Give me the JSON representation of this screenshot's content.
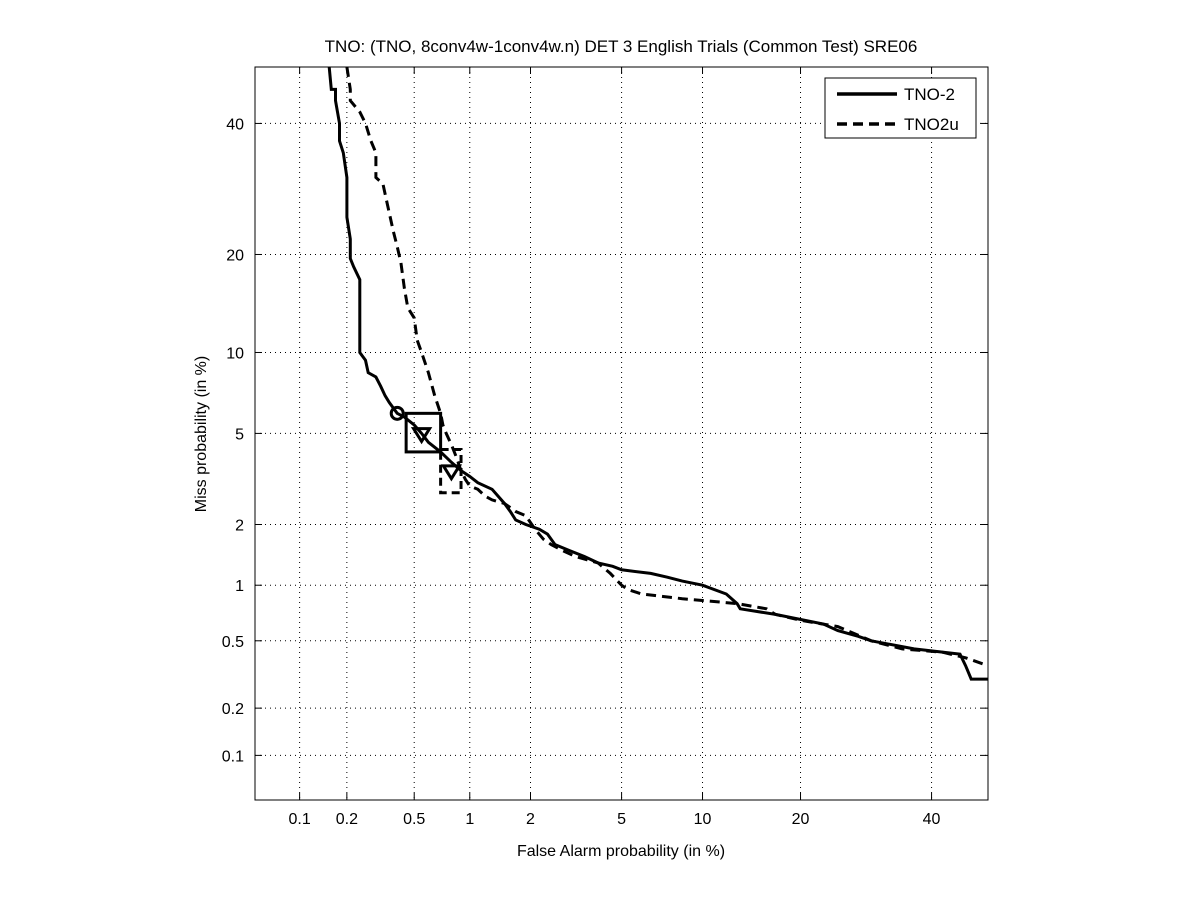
{
  "chart_data": {
    "type": "line",
    "title": "TNO: (TNO, 8conv4w-1conv4w.n) DET 3 English Trials (Common Test) SRE06",
    "xlabel": "False Alarm probability (in %)",
    "ylabel": "Miss probability (in %)",
    "scale": "probit (normal deviate)",
    "xlim": [
      0.05,
      50
    ],
    "ylim": [
      0.05,
      50
    ],
    "grid": true,
    "legend_position": "top-right",
    "x_ticks": [
      0.1,
      0.2,
      0.5,
      1,
      2,
      5,
      10,
      20,
      40
    ],
    "x_tick_labels": [
      "0.1",
      "0.2",
      "0.5",
      "1",
      "2",
      "5",
      "10",
      "20",
      "40"
    ],
    "y_ticks": [
      0.1,
      0.2,
      0.5,
      1,
      2,
      5,
      10,
      20,
      40
    ],
    "y_tick_labels": [
      "0.1",
      "0.2",
      "0.5",
      "1",
      "2",
      "5",
      "10",
      "20",
      "40"
    ],
    "colors": {
      "line": "#000000",
      "grid": "#000000",
      "background": "#ffffff"
    },
    "series": [
      {
        "name": "TNO-2",
        "style": "solid",
        "points": [
          [
            0.155,
            50
          ],
          [
            0.16,
            46
          ],
          [
            0.17,
            46
          ],
          [
            0.17,
            44
          ],
          [
            0.175,
            42
          ],
          [
            0.18,
            40
          ],
          [
            0.18,
            37
          ],
          [
            0.19,
            35
          ],
          [
            0.2,
            31
          ],
          [
            0.2,
            25
          ],
          [
            0.21,
            22
          ],
          [
            0.21,
            19.5
          ],
          [
            0.22,
            18.5
          ],
          [
            0.24,
            17
          ],
          [
            0.24,
            10
          ],
          [
            0.26,
            9.4
          ],
          [
            0.27,
            8.5
          ],
          [
            0.3,
            8.2
          ],
          [
            0.32,
            7.6
          ],
          [
            0.34,
            7.0
          ],
          [
            0.36,
            6.6
          ],
          [
            0.4,
            6.0
          ],
          [
            0.44,
            5.8
          ],
          [
            0.5,
            5.4
          ],
          [
            0.55,
            5.0
          ],
          [
            0.6,
            4.6
          ],
          [
            0.7,
            4.2
          ],
          [
            0.8,
            3.8
          ],
          [
            0.9,
            3.5
          ],
          [
            1.0,
            3.3
          ],
          [
            1.1,
            3.1
          ],
          [
            1.3,
            2.9
          ],
          [
            1.5,
            2.5
          ],
          [
            1.6,
            2.3
          ],
          [
            1.7,
            2.1
          ],
          [
            1.9,
            2.0
          ],
          [
            2.2,
            1.9
          ],
          [
            2.4,
            1.8
          ],
          [
            2.6,
            1.6
          ],
          [
            3.0,
            1.5
          ],
          [
            3.5,
            1.4
          ],
          [
            4.0,
            1.3
          ],
          [
            4.6,
            1.25
          ],
          [
            5.0,
            1.2
          ],
          [
            6.5,
            1.15
          ],
          [
            7.5,
            1.1
          ],
          [
            8.5,
            1.05
          ],
          [
            10.0,
            1.0
          ],
          [
            12.0,
            0.9
          ],
          [
            13.0,
            0.8
          ],
          [
            13.3,
            0.75
          ],
          [
            17.0,
            0.7
          ],
          [
            23.0,
            0.62
          ],
          [
            25.0,
            0.57
          ],
          [
            28.0,
            0.53
          ],
          [
            30.0,
            0.5
          ],
          [
            37.0,
            0.45
          ],
          [
            45.0,
            0.42
          ],
          [
            46.0,
            0.36
          ],
          [
            47.0,
            0.3
          ],
          [
            50.0,
            0.3
          ]
        ]
      },
      {
        "name": "TNO2u",
        "style": "dashed",
        "points": [
          [
            0.2,
            50
          ],
          [
            0.21,
            46
          ],
          [
            0.21,
            44
          ],
          [
            0.24,
            42
          ],
          [
            0.26,
            40
          ],
          [
            0.28,
            37
          ],
          [
            0.3,
            35
          ],
          [
            0.3,
            31
          ],
          [
            0.33,
            30
          ],
          [
            0.35,
            27
          ],
          [
            0.38,
            23
          ],
          [
            0.4,
            21
          ],
          [
            0.42,
            19
          ],
          [
            0.44,
            16
          ],
          [
            0.46,
            14
          ],
          [
            0.5,
            13
          ],
          [
            0.52,
            11
          ],
          [
            0.55,
            10
          ],
          [
            0.6,
            8.5
          ],
          [
            0.65,
            7.0
          ],
          [
            0.7,
            6.0
          ],
          [
            0.72,
            5.4
          ],
          [
            0.75,
            5.0
          ],
          [
            0.8,
            4.5
          ],
          [
            0.85,
            4.0
          ],
          [
            0.9,
            3.5
          ],
          [
            0.95,
            3.2
          ],
          [
            1.0,
            3.0
          ],
          [
            1.1,
            2.9
          ],
          [
            1.2,
            2.7
          ],
          [
            1.3,
            2.6
          ],
          [
            1.5,
            2.5
          ],
          [
            1.7,
            2.3
          ],
          [
            1.9,
            2.2
          ],
          [
            2.1,
            1.9
          ],
          [
            2.3,
            1.7
          ],
          [
            2.5,
            1.6
          ],
          [
            2.8,
            1.5
          ],
          [
            3.2,
            1.4
          ],
          [
            4.0,
            1.3
          ],
          [
            4.5,
            1.15
          ],
          [
            5.0,
            1.0
          ],
          [
            5.3,
            0.95
          ],
          [
            6.0,
            0.9
          ],
          [
            8.5,
            0.85
          ],
          [
            13.0,
            0.8
          ],
          [
            16.0,
            0.75
          ],
          [
            17.0,
            0.7
          ],
          [
            20.0,
            0.65
          ],
          [
            25.0,
            0.6
          ],
          [
            30.0,
            0.5
          ],
          [
            35.0,
            0.45
          ],
          [
            42.0,
            0.43
          ],
          [
            46.0,
            0.4
          ],
          [
            50.0,
            0.36
          ]
        ]
      }
    ],
    "markers": [
      {
        "series": "TNO-2",
        "shape": "circle",
        "x": 0.4,
        "y": 6.0
      },
      {
        "series": "TNO-2",
        "shape": "triangle",
        "x": 0.55,
        "y": 5.0
      },
      {
        "series": "TNO-2",
        "shape": "square",
        "x": 0.55,
        "y": 5.0,
        "x_range": [
          0.45,
          0.7
        ],
        "y_range": [
          4.2,
          6.0
        ]
      },
      {
        "series": "TNO2u",
        "shape": "triangle",
        "x": 0.8,
        "y": 3.5
      },
      {
        "series": "TNO2u",
        "shape": "square",
        "x": 0.8,
        "y": 3.5,
        "x_range": [
          0.7,
          0.9
        ],
        "y_range": [
          2.8,
          4.3
        ]
      }
    ]
  }
}
